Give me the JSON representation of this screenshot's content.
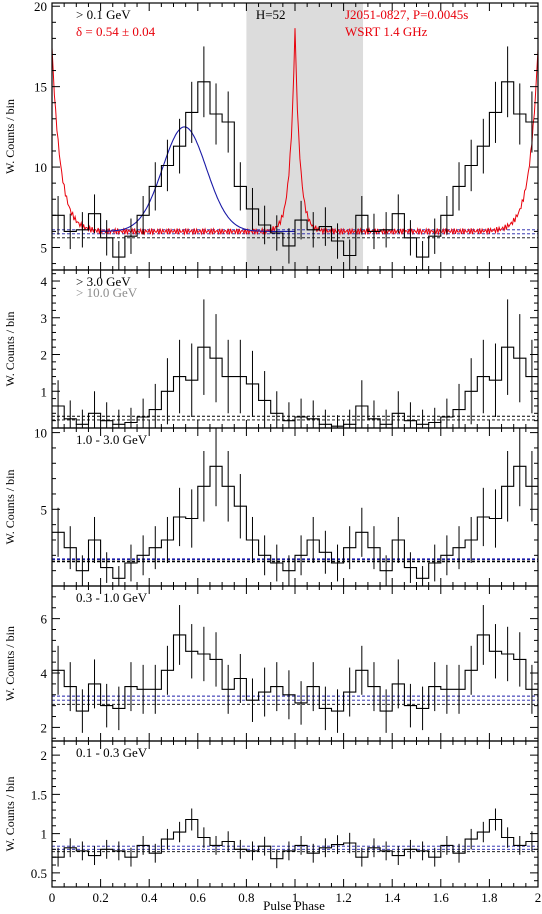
{
  "figure": {
    "xlabel": "Pulse Phase",
    "ylabel": "W. Counts / bin",
    "xticks": [
      0,
      0.2,
      0.4,
      0.6,
      0.8,
      1,
      1.2,
      1.4,
      1.6,
      1.8,
      2
    ],
    "xtick_labels": [
      "0",
      "0.2",
      "0.4",
      "0.6",
      "0.8",
      "1",
      "1.2",
      "1.4",
      "1.6",
      "1.8",
      "2"
    ],
    "colors": {
      "black": "#000000",
      "red": "#e8000b",
      "blue": "#1a1aa6",
      "gray_text": "#8c8c8c",
      "shade": "#dcdcdc"
    }
  },
  "chart_data": [
    {
      "type": "line",
      "label": "> 0.1 GeV",
      "annotations": {
        "delta": "δ = 0.54 ± 0.04",
        "h_test": "H=52",
        "pulsar": "J2051-0827, P=0.0045s",
        "radio": "WSRT 1.4 GHz"
      },
      "xlim": [
        0,
        2
      ],
      "ylim": [
        3.6,
        20.2
      ],
      "yticks": [
        5,
        10,
        15,
        20
      ],
      "shaded_phase": [
        0.8,
        1.28
      ],
      "background_levels": [
        5.6,
        5.85,
        6.1
      ],
      "bins": 40,
      "counts": [
        7.0,
        6.0,
        6.1,
        7.1,
        5.6,
        4.4,
        5.7,
        7.0,
        8.8,
        10.1,
        11.3,
        13.4,
        15.3,
        13.3,
        12.8,
        8.8,
        7.4,
        6.4,
        5.9,
        5.1,
        6.7,
        6.1,
        6.3,
        5.4,
        4.5,
        7.0,
        6.0,
        6.1,
        7.1,
        5.6,
        4.4,
        5.7,
        7.0,
        8.8,
        10.1,
        11.3,
        13.4,
        15.3,
        13.3,
        12.8
      ],
      "errors": [
        1.2,
        1.1,
        1.1,
        1.2,
        1.1,
        1.0,
        1.1,
        1.2,
        1.5,
        1.6,
        1.7,
        1.9,
        2.2,
        1.9,
        1.9,
        1.5,
        1.3,
        1.2,
        1.1,
        1.1,
        1.2,
        1.1,
        1.2,
        1.1,
        1.0,
        1.2,
        1.1,
        1.1,
        1.2,
        1.1,
        1.0,
        1.1,
        1.2,
        1.5,
        1.6,
        1.7,
        1.9,
        2.2,
        1.9,
        1.9
      ],
      "fit_gaussian": {
        "base": 6.0,
        "amplitude": 6.5,
        "center": 0.545,
        "sigma": 0.09,
        "range": [
          0.2,
          1.0
        ]
      },
      "radio_profile": {
        "base": 6.0,
        "peak_phase": 1.0,
        "peak_height": 18.7,
        "width": 0.02
      }
    },
    {
      "type": "line",
      "label": "> 3.0 GeV",
      "label_secondary": "> 10.0 GeV",
      "xlim": [
        0,
        2
      ],
      "ylim": [
        0,
        4.3
      ],
      "yticks": [
        1,
        2,
        3,
        4
      ],
      "background_levels": [
        0.22,
        0.32
      ],
      "bins": 40,
      "counts": [
        0.6,
        0.25,
        0.1,
        0.4,
        0.2,
        0.1,
        0.15,
        0.3,
        0.5,
        1.0,
        1.4,
        1.3,
        2.2,
        1.9,
        1.4,
        1.4,
        1.2,
        0.75,
        0.4,
        0.2,
        0.3,
        0.25,
        0.1,
        0.05,
        0.1,
        0.6,
        0.25,
        0.1,
        0.4,
        0.2,
        0.1,
        0.15,
        0.3,
        0.5,
        1.0,
        1.4,
        1.3,
        2.2,
        1.9,
        1.4
      ],
      "errors": [
        0.7,
        0.5,
        0.4,
        0.6,
        0.5,
        0.4,
        0.4,
        0.5,
        0.7,
        0.9,
        1.0,
        1.0,
        1.3,
        1.2,
        1.0,
        1.0,
        0.9,
        0.8,
        0.6,
        0.5,
        0.5,
        0.5,
        0.4,
        0.3,
        0.4,
        0.7,
        0.5,
        0.4,
        0.6,
        0.5,
        0.4,
        0.4,
        0.5,
        0.7,
        0.9,
        1.0,
        1.0,
        1.3,
        1.2,
        1.0
      ]
    },
    {
      "type": "line",
      "label": "1.0 - 3.0 GeV",
      "xlim": [
        0,
        2
      ],
      "ylim": [
        0,
        10.3
      ],
      "yticks": [
        5,
        10
      ],
      "background_levels": [
        1.6,
        1.75
      ],
      "bins": 40,
      "counts": [
        3.5,
        2.5,
        1.0,
        3.0,
        1.2,
        0.5,
        1.5,
        2.0,
        2.5,
        3.0,
        4.5,
        4.4,
        6.5,
        7.8,
        6.5,
        5.2,
        3.0,
        2.0,
        1.5,
        1.0,
        2.0,
        3.0,
        2.2,
        1.5,
        2.5,
        3.5,
        2.5,
        1.0,
        3.0,
        1.2,
        0.5,
        1.5,
        2.0,
        2.5,
        3.0,
        4.5,
        4.4,
        6.5,
        7.8,
        6.5
      ],
      "errors": [
        1.6,
        1.4,
        1.0,
        1.5,
        1.0,
        0.8,
        1.2,
        1.3,
        1.4,
        1.5,
        1.9,
        1.9,
        2.3,
        2.6,
        2.3,
        2.1,
        1.5,
        1.3,
        1.2,
        1.0,
        1.3,
        1.5,
        1.4,
        1.2,
        1.4,
        1.6,
        1.4,
        1.0,
        1.5,
        1.0,
        0.8,
        1.2,
        1.3,
        1.4,
        1.5,
        1.9,
        1.9,
        2.3,
        2.6,
        2.3
      ]
    },
    {
      "type": "line",
      "label": "0.3 - 1.0 GeV",
      "xlim": [
        0,
        2
      ],
      "ylim": [
        1.5,
        7.2
      ],
      "yticks": [
        2,
        4,
        6
      ],
      "background_levels": [
        2.85,
        3.0,
        3.15
      ],
      "bins": 40,
      "counts": [
        4.1,
        3.5,
        2.6,
        3.6,
        2.8,
        2.7,
        3.5,
        3.4,
        3.4,
        4.1,
        5.4,
        4.8,
        4.7,
        4.5,
        3.4,
        3.8,
        3.0,
        3.3,
        3.5,
        3.2,
        2.9,
        3.5,
        2.7,
        2.6,
        3.3,
        4.1,
        3.5,
        2.6,
        3.6,
        2.8,
        2.7,
        3.5,
        3.4,
        3.4,
        4.1,
        5.4,
        4.8,
        4.7,
        4.5,
        3.4
      ],
      "errors": [
        0.9,
        0.9,
        0.8,
        0.9,
        0.8,
        0.8,
        0.9,
        0.9,
        0.9,
        0.9,
        1.1,
        1.0,
        1.0,
        1.0,
        0.9,
        0.9,
        0.8,
        0.9,
        0.9,
        0.9,
        0.8,
        0.9,
        0.8,
        0.8,
        0.9,
        0.9,
        0.9,
        0.8,
        0.9,
        0.8,
        0.8,
        0.9,
        0.9,
        0.9,
        0.9,
        1.1,
        1.0,
        1.0,
        1.0,
        0.9
      ]
    },
    {
      "type": "line",
      "label": "0.1 - 0.3 GeV",
      "xlim": [
        0,
        2
      ],
      "ylim": [
        0.32,
        2.18
      ],
      "yticks": [
        0.5,
        1,
        1.5,
        2
      ],
      "background_levels": [
        0.77,
        0.8,
        0.84
      ],
      "bins": 40,
      "counts": [
        0.7,
        0.82,
        0.78,
        0.72,
        0.8,
        0.78,
        0.7,
        0.85,
        0.75,
        0.93,
        1.02,
        1.18,
        0.95,
        0.85,
        0.9,
        0.8,
        0.78,
        0.84,
        0.68,
        0.78,
        0.85,
        0.75,
        0.82,
        0.86,
        0.88,
        0.7,
        0.82,
        0.78,
        0.72,
        0.8,
        0.78,
        0.7,
        0.85,
        0.75,
        0.93,
        1.02,
        1.18,
        0.95,
        0.85,
        0.9
      ],
      "errors": [
        0.12,
        0.12,
        0.12,
        0.12,
        0.12,
        0.12,
        0.12,
        0.12,
        0.12,
        0.13,
        0.13,
        0.14,
        0.13,
        0.12,
        0.13,
        0.12,
        0.12,
        0.12,
        0.12,
        0.12,
        0.12,
        0.12,
        0.12,
        0.12,
        0.13,
        0.12,
        0.12,
        0.12,
        0.12,
        0.12,
        0.12,
        0.12,
        0.12,
        0.12,
        0.13,
        0.13,
        0.14,
        0.13,
        0.12,
        0.13
      ]
    }
  ]
}
